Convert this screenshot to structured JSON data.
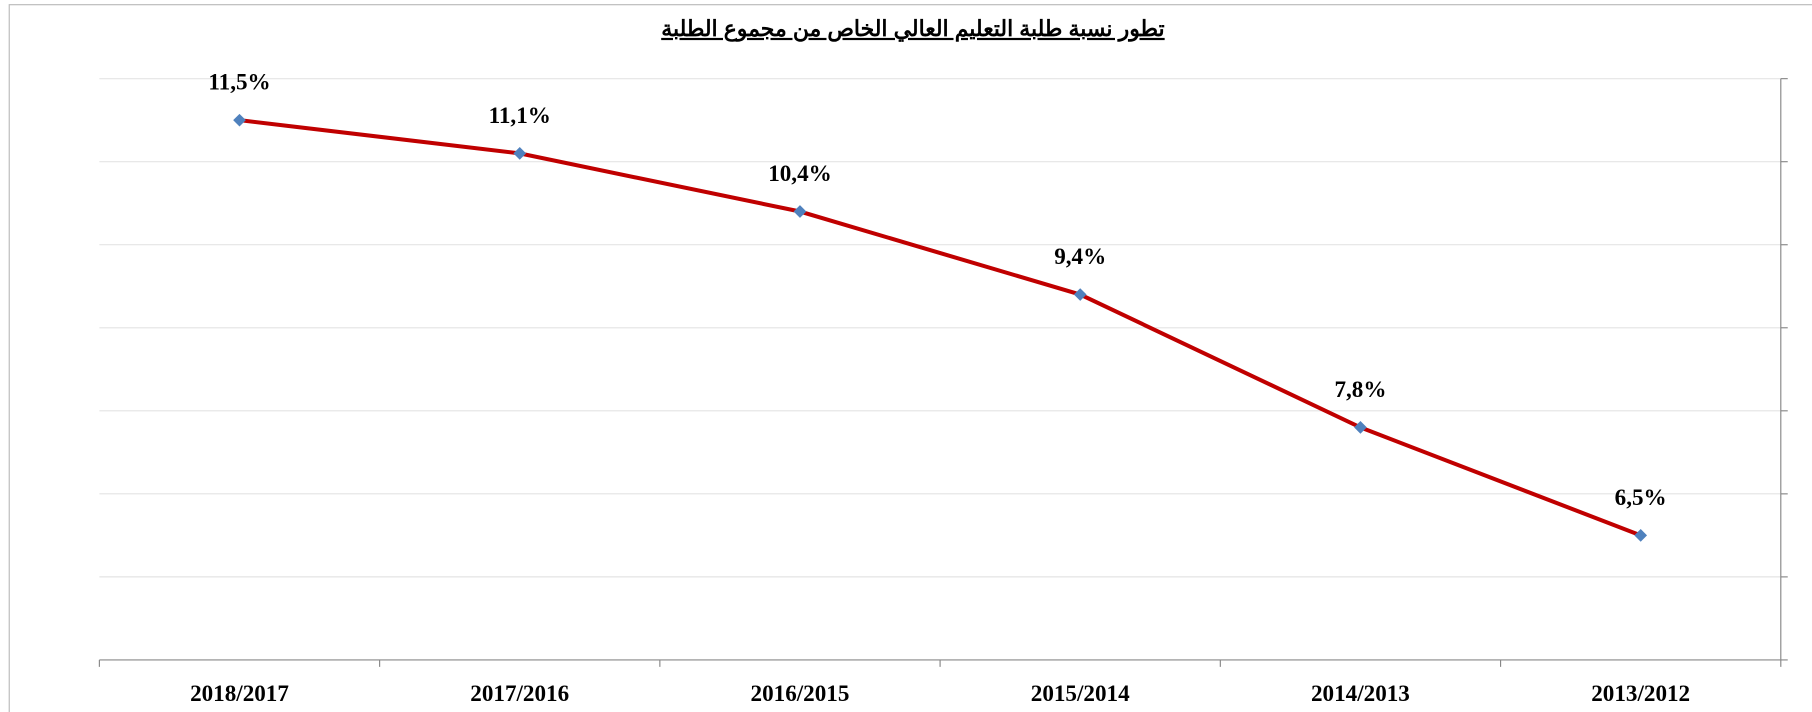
{
  "chart_data": {
    "type": "line",
    "title": "تطور نسبة طلبة التعليم العالي الخاص من مجموع الطلبة",
    "categories": [
      "2013/2012",
      "2014/2013",
      "2015/2014",
      "2016/2015",
      "2017/2016",
      "2018/2017"
    ],
    "series": [
      {
        "name": "نسبة طلبة التعليم العالي الخاص",
        "color": "#c00000",
        "marker_color": "#4f81bd",
        "values": [
          6.5,
          7.8,
          9.4,
          10.4,
          11.1,
          11.5
        ],
        "value_labels": [
          "6,5%",
          "7,8%",
          "9,4%",
          "10,4%",
          "11,1%",
          "11,5%"
        ]
      }
    ],
    "ylim": [
      5,
      12
    ],
    "yticks": [
      5,
      6,
      7,
      8,
      9,
      10,
      11,
      12
    ],
    "grid": true,
    "x_reversed": true,
    "y_axis_side": "right"
  }
}
